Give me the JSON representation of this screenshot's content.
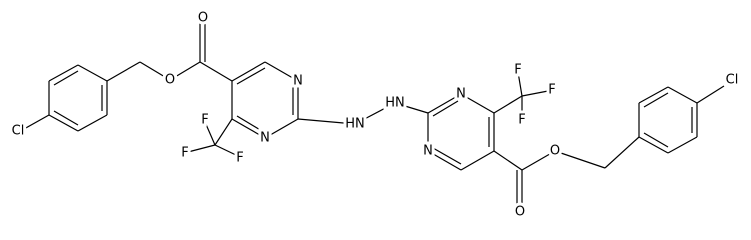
{
  "labels": [
    "Cl",
    "O",
    "O",
    "N",
    "N",
    "F",
    "F",
    "F",
    "HN",
    "HN",
    "N",
    "N",
    "F",
    "F",
    "F",
    "O",
    "O",
    "Cl"
  ]
}
